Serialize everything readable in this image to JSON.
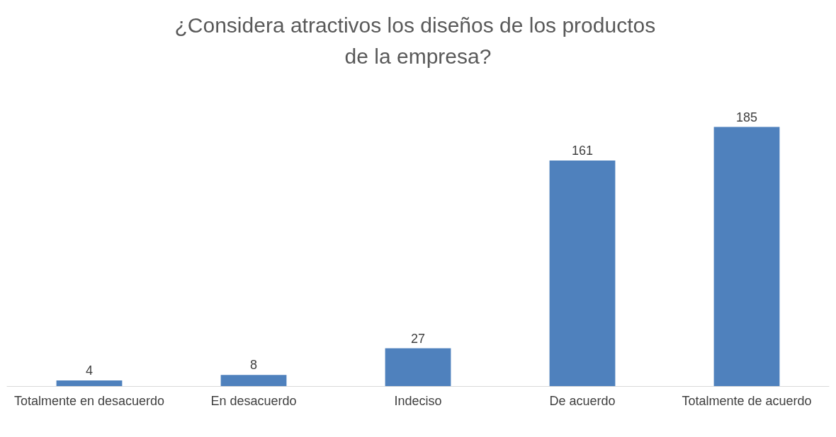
{
  "chart_data": {
    "type": "bar",
    "title": "¿Considera atractivos los diseños de los productos de la empresa?",
    "categories": [
      "Totalmente en desacuerdo",
      "En desacuerdo",
      "Indeciso",
      "De acuerdo",
      "Totalmente de acuerdo"
    ],
    "values": [
      4,
      8,
      27,
      161,
      185
    ],
    "color": "#4f81bd",
    "data_labels": true,
    "grid": false,
    "legend": false
  }
}
